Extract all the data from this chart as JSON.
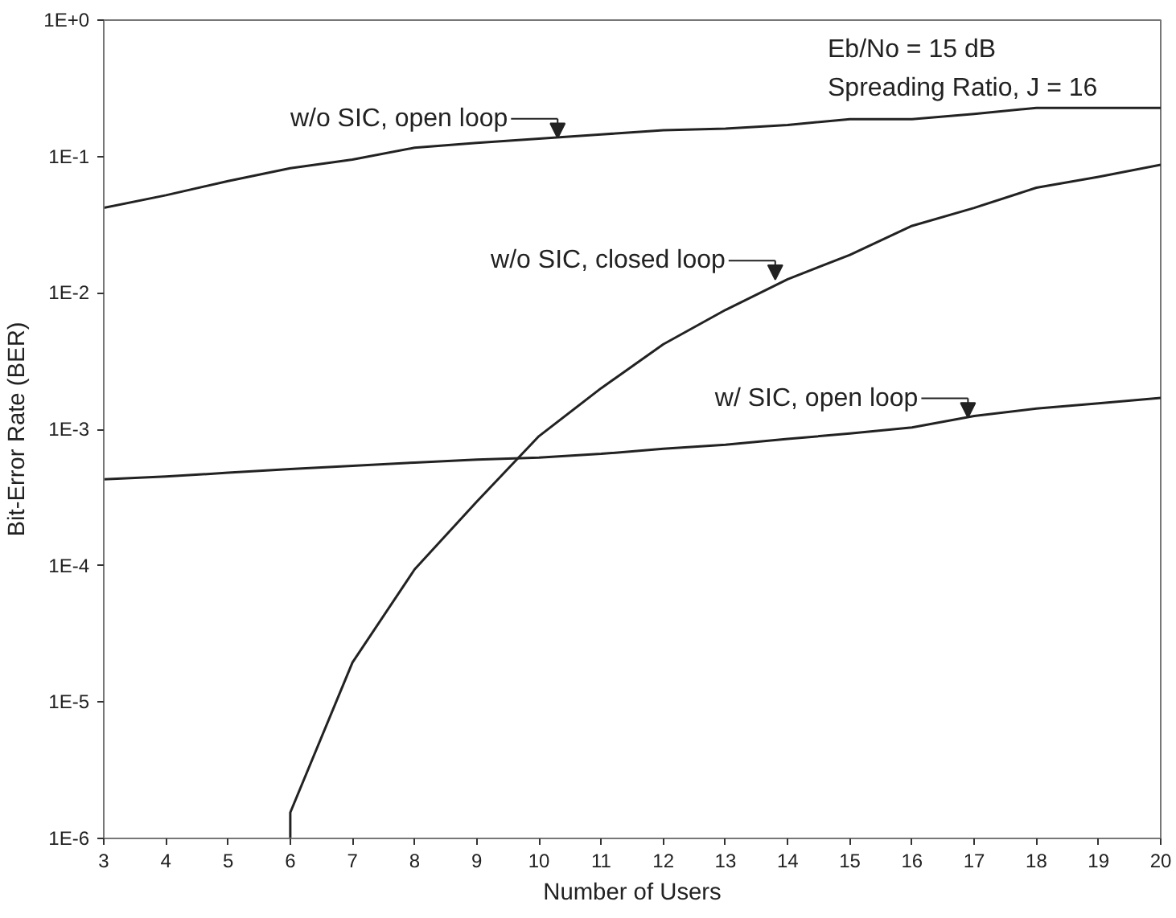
{
  "chart_data": {
    "type": "line",
    "xlabel": "Number of Users",
    "ylabel": "Bit-Error Rate (BER)",
    "log": "y",
    "xlim": [
      3,
      20
    ],
    "xticks": [
      3,
      4,
      5,
      6,
      7,
      8,
      9,
      10,
      11,
      12,
      13,
      14,
      15,
      16,
      17,
      18,
      19,
      20
    ],
    "ylim": [
      1e-06,
      1
    ],
    "yticks": [
      {
        "value": 1e-06,
        "label": "1E-6"
      },
      {
        "value": 1e-05,
        "label": "1E-5"
      },
      {
        "value": 0.0001,
        "label": "1E-4"
      },
      {
        "value": 0.001,
        "label": "1E-3"
      },
      {
        "value": 0.01,
        "label": "1E-2"
      },
      {
        "value": 0.1,
        "label": "1E-1"
      },
      {
        "value": 1,
        "label": "1E+0"
      }
    ],
    "grid": false,
    "marker": "none",
    "line_style": "solid",
    "series": [
      {
        "color": "#222222",
        "x": [
          3,
          4,
          5,
          6,
          7,
          8,
          9,
          10,
          11,
          12,
          13,
          14,
          15,
          16,
          17,
          18,
          19,
          20
        ],
        "values": [
          0.042,
          0.052,
          0.066,
          0.082,
          0.095,
          0.116,
          0.126,
          0.135,
          0.145,
          0.156,
          0.16,
          0.17,
          0.188,
          0.188,
          0.205,
          0.227,
          0.227,
          0.227
        ]
      },
      {
        "color": "#222222",
        "x": [
          6,
          6,
          7,
          8,
          9,
          10,
          11,
          12,
          13,
          14,
          15,
          16,
          17,
          18,
          19,
          20
        ],
        "values": [
          1e-06,
          1.55e-06,
          1.95e-05,
          9.4e-05,
          0.000295,
          0.00089,
          0.002,
          0.0042,
          0.0075,
          0.0126,
          0.019,
          0.031,
          0.042,
          0.059,
          0.071,
          0.087
        ]
      },
      {
        "color": "#222222",
        "x": [
          3,
          4,
          5,
          6,
          7,
          8,
          9,
          10,
          11,
          12,
          13,
          14,
          15,
          16,
          17,
          18,
          19,
          20
        ],
        "values": [
          0.00043,
          0.00045,
          0.00048,
          0.00051,
          0.00054,
          0.00057,
          0.0006,
          0.00062,
          0.00066,
          0.00072,
          0.00077,
          0.00085,
          0.00093,
          0.00103,
          0.00125,
          0.00142,
          0.00155,
          0.0017
        ]
      }
    ],
    "annotations": [
      {
        "text": "w/o SIC, open loop",
        "x": 10.3,
        "y": 0.137
      },
      {
        "text": "w/o SIC, closed loop",
        "x": 13.8,
        "y": 0.0125
      },
      {
        "text": "w/ SIC, open loop",
        "x": 16.9,
        "y": 0.00122
      },
      "Eb/No = 15 dB",
      "Spreading Ratio, J = 16"
    ]
  }
}
